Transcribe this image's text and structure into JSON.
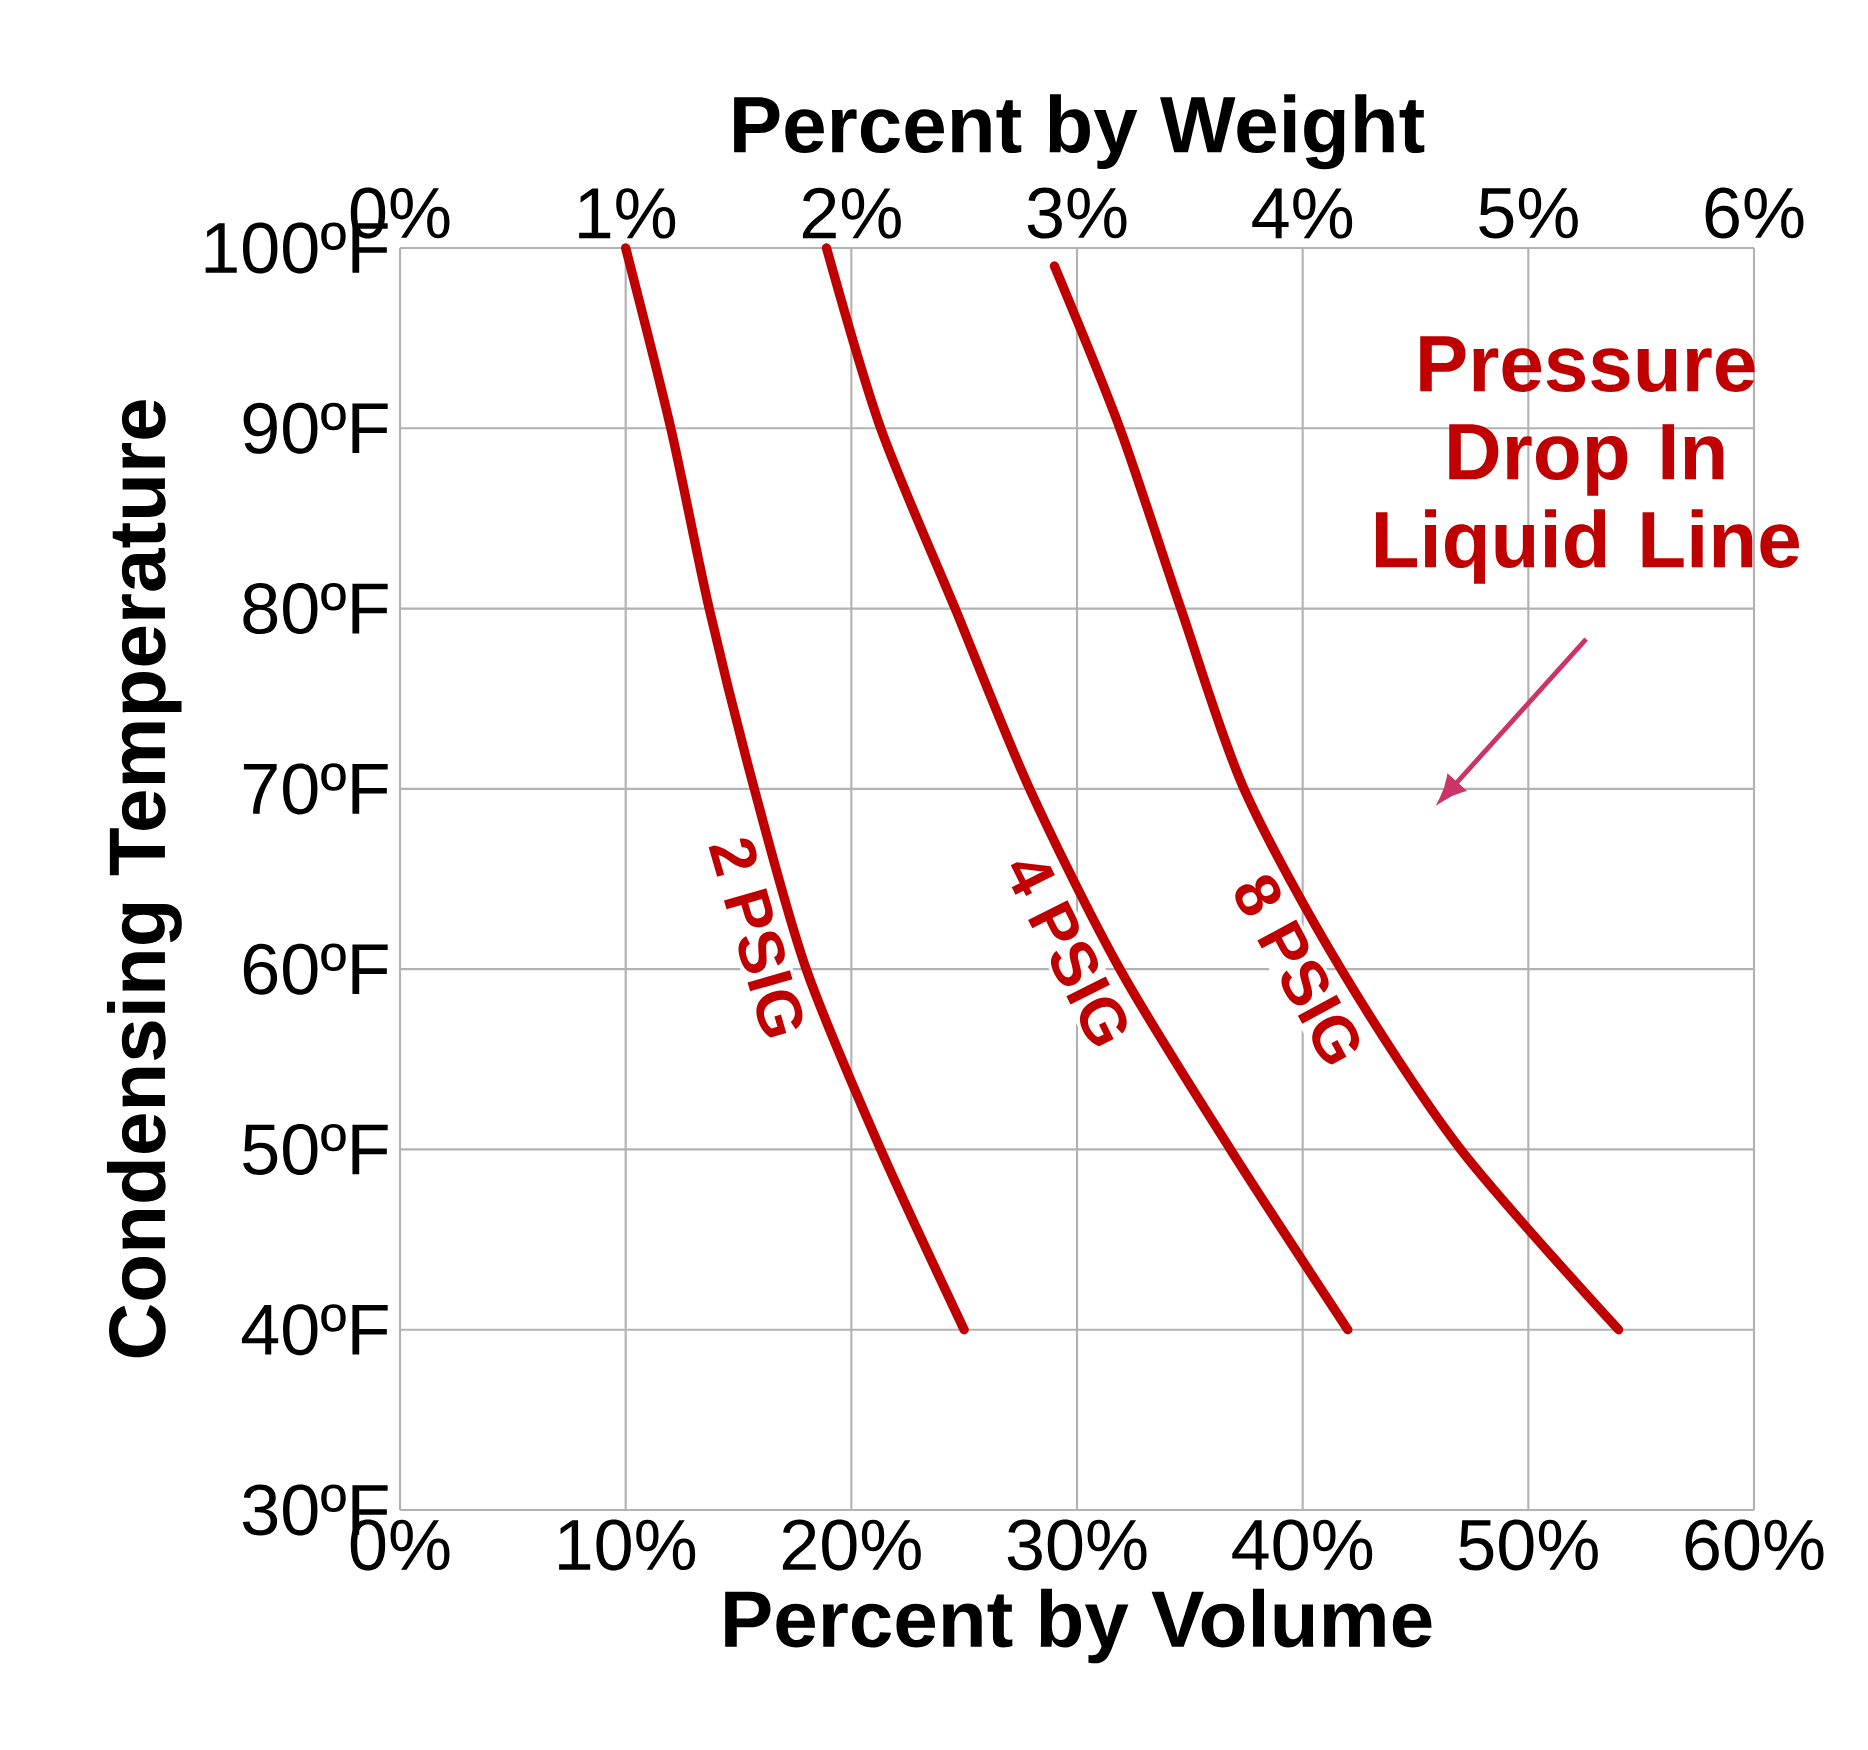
{
  "chart_data": {
    "type": "line",
    "xlabel": "Percent by Volume",
    "x2label": "Percent by Weight",
    "ylabel": "Condensing Temperature",
    "xlim": [
      0,
      60
    ],
    "xticks": [
      {
        "value": 0,
        "label": "0%"
      },
      {
        "value": 10,
        "label": "10%"
      },
      {
        "value": 20,
        "label": "20%"
      },
      {
        "value": 30,
        "label": "30%"
      },
      {
        "value": 40,
        "label": "40%"
      },
      {
        "value": 50,
        "label": "50%"
      },
      {
        "value": 60,
        "label": "60%"
      }
    ],
    "x2lim": [
      0,
      6
    ],
    "x2ticks": [
      {
        "value": 0,
        "label": "0%"
      },
      {
        "value": 1,
        "label": "1%"
      },
      {
        "value": 2,
        "label": "2%"
      },
      {
        "value": 3,
        "label": "3%"
      },
      {
        "value": 4,
        "label": "4%"
      },
      {
        "value": 5,
        "label": "5%"
      },
      {
        "value": 6,
        "label": "6%"
      }
    ],
    "ylim": [
      30,
      100
    ],
    "yticks": [
      {
        "value": 30,
        "label": "30ºF"
      },
      {
        "value": 40,
        "label": "40ºF"
      },
      {
        "value": 50,
        "label": "50ºF"
      },
      {
        "value": 60,
        "label": "60ºF"
      },
      {
        "value": 70,
        "label": "70ºF"
      },
      {
        "value": 80,
        "label": "80ºF"
      },
      {
        "value": 90,
        "label": "90ºF"
      },
      {
        "value": 100,
        "label": "100ºF"
      }
    ],
    "grid": true,
    "marker": "none",
    "line_style": "solid",
    "series": [
      {
        "name": "2 PSIG",
        "color": "#c00000",
        "x": [
          10,
          12,
          13.7,
          15.7,
          18,
          21.3,
          25
        ],
        "values": [
          100,
          90,
          80,
          70,
          60,
          50,
          40
        ]
      },
      {
        "name": "4 PSIG",
        "color": "#c00000",
        "x": [
          18.9,
          21.3,
          24.6,
          27.9,
          31.9,
          36.8,
          42
        ],
        "values": [
          100,
          90,
          80,
          70,
          60,
          50,
          40
        ]
      },
      {
        "name": "8 PSIG",
        "color": "#c00000",
        "x": [
          29,
          31.9,
          34.6,
          37.4,
          41.7,
          47,
          54
        ],
        "values": [
          99,
          90,
          80,
          70,
          60,
          50,
          40
        ]
      }
    ],
    "annotations": [
      "Pressure Drop In Liquid Line"
    ]
  }
}
